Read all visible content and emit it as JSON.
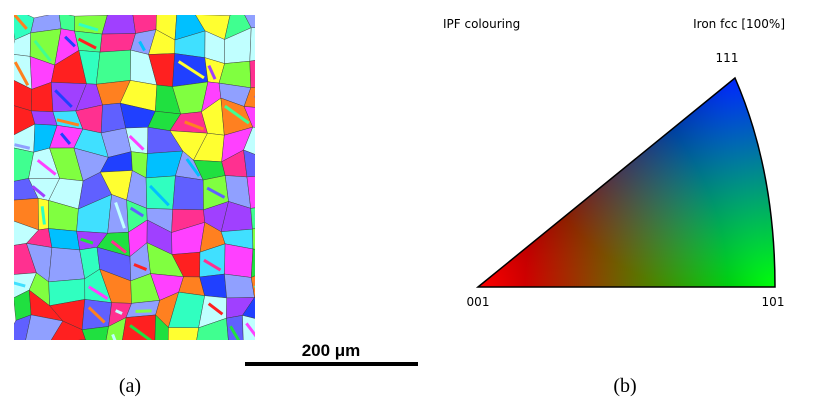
{
  "figure": {
    "panel_a": {
      "scale_bar_label": "200 μm",
      "caption": "(a)"
    },
    "panel_b": {
      "title_left": "IPF colouring",
      "title_right": "Iron fcc [100%]",
      "corner_top": "111",
      "corner_left": "001",
      "corner_right": "101",
      "caption": "(b)"
    }
  }
}
